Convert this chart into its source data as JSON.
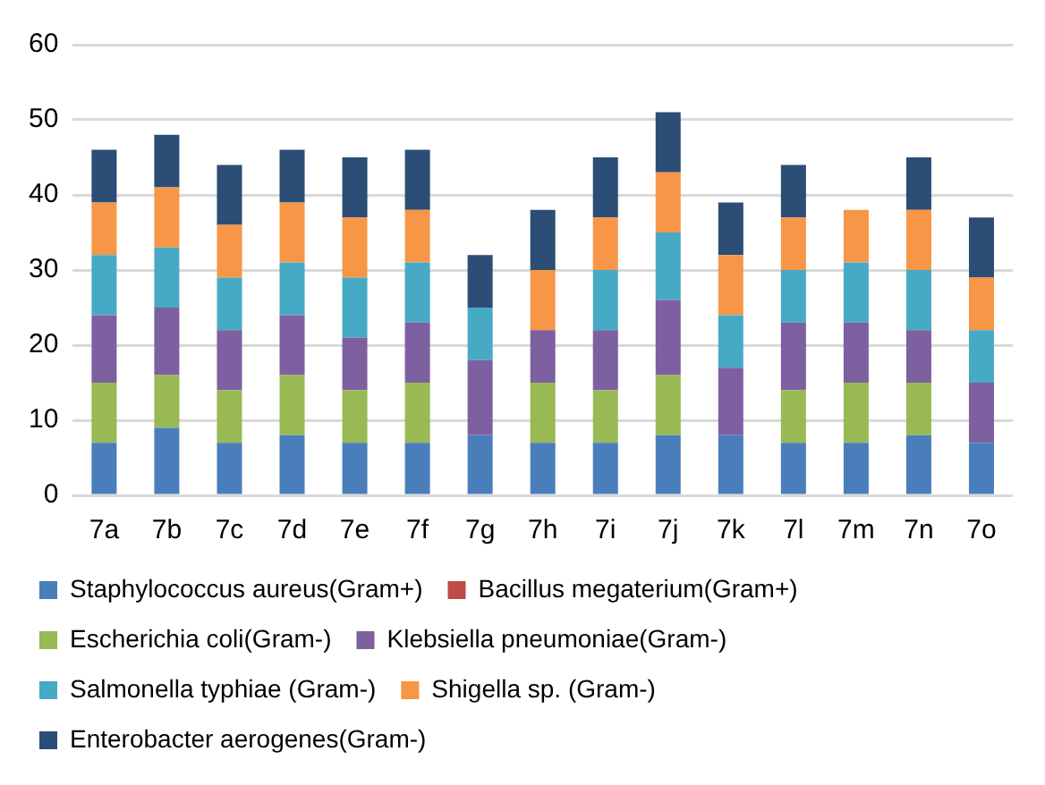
{
  "chart_data": {
    "type": "bar",
    "stacked": true,
    "categories": [
      "7a",
      "7b",
      "7c",
      "7d",
      "7e",
      "7f",
      "7g",
      "7h",
      "7i",
      "7j",
      "7k",
      "7l",
      "7m",
      "7n",
      "7o"
    ],
    "series": [
      {
        "name": "Staphylococcus aureus(Gram+)",
        "color": "#4a7ebb",
        "values": [
          7,
          9,
          7,
          8,
          7,
          7,
          8,
          7,
          7,
          8,
          8,
          7,
          7,
          8,
          7
        ]
      },
      {
        "name": "Bacillus megaterium(Gram+)",
        "color": "#be4b48",
        "values": [
          0,
          0,
          0,
          0,
          0,
          0,
          0,
          0,
          0,
          0,
          0,
          0,
          0,
          0,
          0
        ]
      },
      {
        "name": "Escherichia coli(Gram-)",
        "color": "#98b954",
        "values": [
          8,
          7,
          7,
          8,
          7,
          8,
          0,
          8,
          7,
          8,
          0,
          7,
          8,
          7,
          0
        ]
      },
      {
        "name": "Klebsiella pneumoniae(Gram-)",
        "color": "#7d60a0",
        "values": [
          9,
          9,
          8,
          8,
          7,
          8,
          10,
          7,
          8,
          10,
          9,
          9,
          8,
          7,
          8
        ]
      },
      {
        "name": "Salmonella typhiae (Gram-)",
        "color": "#46aac5",
        "values": [
          8,
          8,
          7,
          7,
          8,
          8,
          7,
          0,
          8,
          9,
          7,
          7,
          8,
          8,
          7
        ]
      },
      {
        "name": "Shigella sp. (Gram-)",
        "color": "#f79646",
        "values": [
          7,
          8,
          7,
          8,
          8,
          7,
          0,
          8,
          7,
          8,
          8,
          7,
          7,
          8,
          7
        ]
      },
      {
        "name": "Enterobacter aerogenes(Gram-)",
        "color": "#2c4d75",
        "values": [
          7,
          7,
          8,
          7,
          8,
          8,
          7,
          8,
          8,
          8,
          7,
          7,
          0,
          7,
          8
        ]
      }
    ],
    "ylim": [
      0,
      60
    ],
    "yticks": [
      0,
      10,
      20,
      30,
      40,
      50,
      60
    ],
    "grid": "y",
    "legend": "bottom"
  }
}
